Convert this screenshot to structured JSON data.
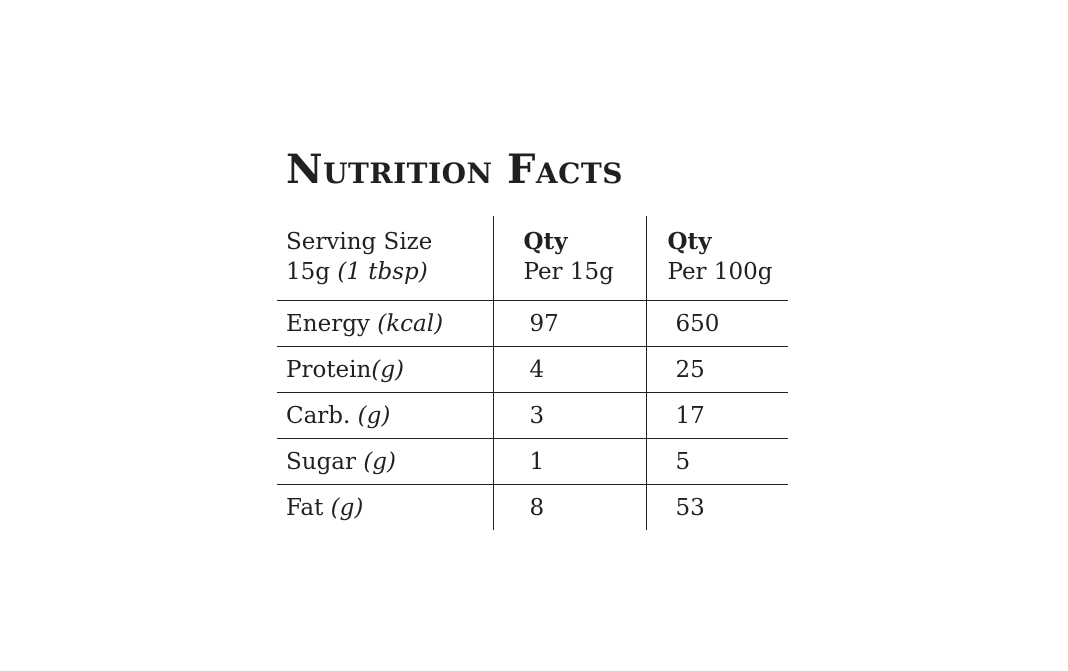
{
  "title": "Nutrition Facts",
  "header": {
    "serving_label": "Serving Size",
    "serving_amount": "15g",
    "serving_measure": "(1 tbsp)",
    "col2_title": "Qty",
    "col2_sub": "Per 15g",
    "col3_title": "Qty",
    "col3_sub": "Per 100g"
  },
  "rows": [
    {
      "name": "Energy",
      "unit": "(kcal)",
      "per_serving": "97",
      "per_100g": "650"
    },
    {
      "name": "Protein",
      "unit": "(g)",
      "per_serving": "4",
      "per_100g": "25"
    },
    {
      "name": "Carb.",
      "unit": "(g)",
      "per_serving": "3",
      "per_100g": "17"
    },
    {
      "name": "Sugar",
      "unit": "(g)",
      "per_serving": "1",
      "per_100g": "5"
    },
    {
      "name": "Fat",
      "unit": "(g)",
      "per_serving": "8",
      "per_100g": "53"
    }
  ]
}
